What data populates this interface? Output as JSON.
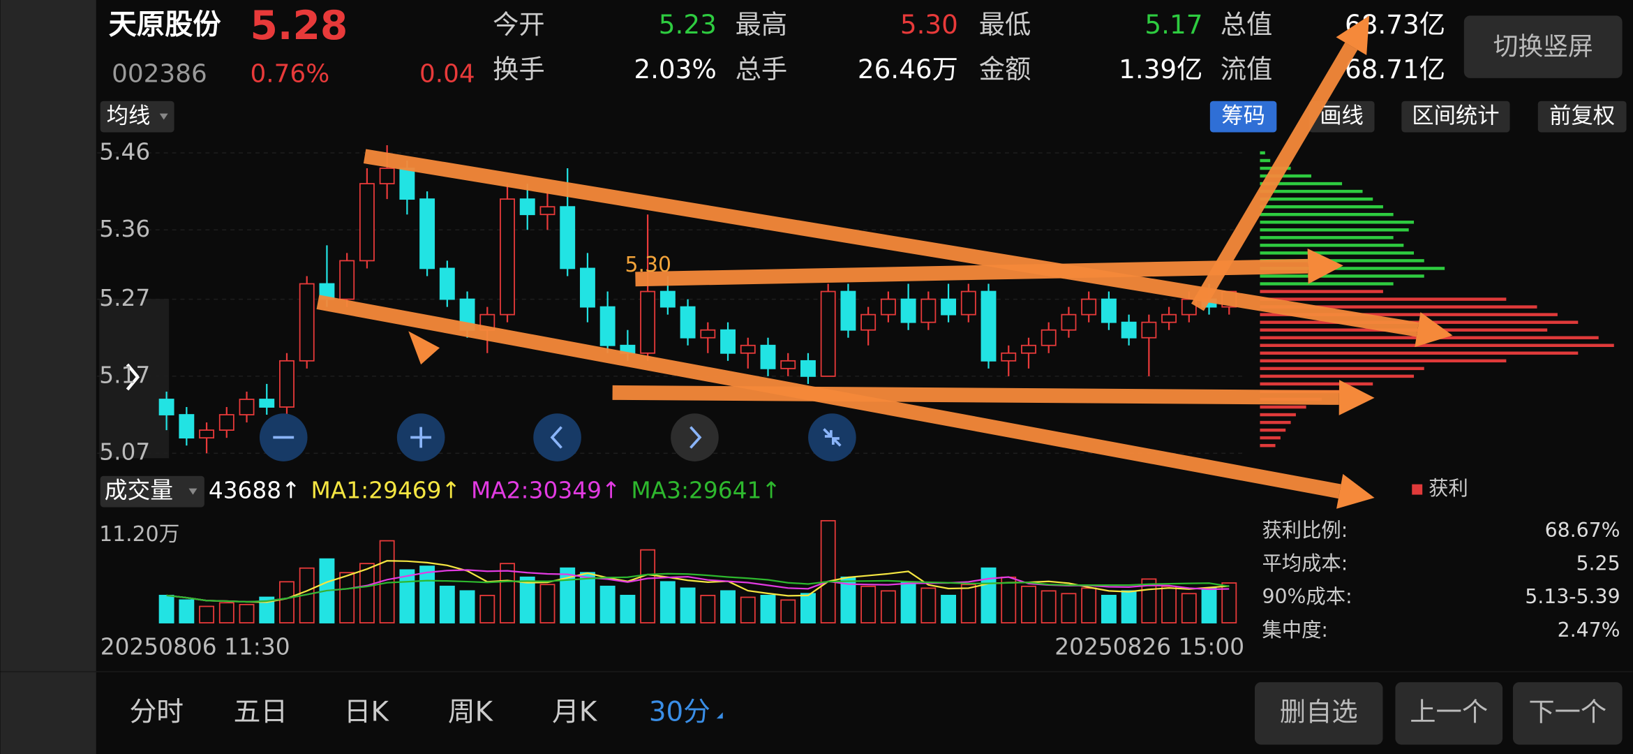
{
  "header": {
    "name": "天原股份",
    "price": "5.28",
    "code": "002386",
    "change_pct": "0.76%",
    "change": "0.04",
    "stats": [
      {
        "label": "今开",
        "value": "5.23",
        "color": "#2ecc40"
      },
      {
        "label": "最高",
        "value": "5.30",
        "color": "#e83a3a"
      },
      {
        "label": "最低",
        "value": "5.17",
        "color": "#2ecc40"
      },
      {
        "label": "总值",
        "value": "68.73亿",
        "color": "#ffffff"
      },
      {
        "label": "换手",
        "value": "2.03%",
        "color": "#ffffff"
      },
      {
        "label": "总手",
        "value": "26.46万",
        "color": "#ffffff"
      },
      {
        "label": "金额",
        "value": "1.39亿",
        "color": "#ffffff"
      },
      {
        "label": "流值",
        "value": "68.71亿",
        "color": "#ffffff"
      }
    ],
    "button": "切换竖屏"
  },
  "toolbar": {
    "ma": "均线",
    "tools": [
      "筹码",
      "画线",
      "区间统计",
      "前复权"
    ],
    "active_tool": 0
  },
  "chart_data": {
    "type": "candlestick",
    "annotation": "5.30",
    "start_label": "20250806 11:30",
    "end_label": "20250826 15:00",
    "ylim": [
      5.05,
      5.48
    ],
    "yticks": [
      5.46,
      5.36,
      5.27,
      5.17,
      5.07
    ],
    "grid": true,
    "up_color": "#e83a3a",
    "down_color": "#22e3e3",
    "open": [
      5.14,
      5.12,
      5.09,
      5.1,
      5.12,
      5.14,
      5.13,
      5.19,
      5.29,
      5.27,
      5.32,
      5.42,
      5.44,
      5.4,
      5.31,
      5.27,
      5.23,
      5.25,
      5.4,
      5.38,
      5.39,
      5.31,
      5.26,
      5.21,
      5.2,
      5.28,
      5.26,
      5.22,
      5.23,
      5.2,
      5.21,
      5.18,
      5.19,
      5.17,
      5.28,
      5.23,
      5.25,
      5.27,
      5.24,
      5.27,
      5.25,
      5.28,
      5.19,
      5.2,
      5.21,
      5.23,
      5.25,
      5.27,
      5.24,
      5.22,
      5.24,
      5.25,
      5.27,
      5.26
    ],
    "high": [
      5.15,
      5.13,
      5.11,
      5.13,
      5.15,
      5.16,
      5.2,
      5.3,
      5.34,
      5.33,
      5.44,
      5.47,
      5.45,
      5.41,
      5.32,
      5.28,
      5.26,
      5.42,
      5.42,
      5.41,
      5.44,
      5.33,
      5.28,
      5.23,
      5.38,
      5.3,
      5.27,
      5.24,
      5.24,
      5.22,
      5.22,
      5.2,
      5.2,
      5.29,
      5.29,
      5.26,
      5.28,
      5.29,
      5.28,
      5.29,
      5.29,
      5.29,
      5.21,
      5.22,
      5.24,
      5.26,
      5.28,
      5.28,
      5.25,
      5.25,
      5.26,
      5.28,
      5.29,
      5.28
    ],
    "low": [
      5.1,
      5.08,
      5.07,
      5.09,
      5.11,
      5.12,
      5.12,
      5.18,
      5.26,
      5.26,
      5.31,
      5.4,
      5.38,
      5.3,
      5.26,
      5.22,
      5.2,
      5.24,
      5.36,
      5.36,
      5.3,
      5.24,
      5.2,
      5.19,
      5.19,
      5.25,
      5.21,
      5.2,
      5.19,
      5.18,
      5.17,
      5.17,
      5.16,
      5.17,
      5.22,
      5.21,
      5.24,
      5.23,
      5.23,
      5.24,
      5.24,
      5.18,
      5.17,
      5.18,
      5.2,
      5.22,
      5.24,
      5.23,
      5.21,
      5.17,
      5.23,
      5.24,
      5.25,
      5.25
    ],
    "close": [
      5.12,
      5.09,
      5.1,
      5.12,
      5.14,
      5.13,
      5.19,
      5.29,
      5.27,
      5.32,
      5.42,
      5.44,
      5.4,
      5.31,
      5.27,
      5.23,
      5.25,
      5.4,
      5.38,
      5.39,
      5.31,
      5.26,
      5.21,
      5.2,
      5.28,
      5.26,
      5.22,
      5.23,
      5.2,
      5.21,
      5.18,
      5.19,
      5.17,
      5.28,
      5.23,
      5.25,
      5.27,
      5.24,
      5.27,
      5.25,
      5.28,
      5.19,
      5.2,
      5.21,
      5.23,
      5.25,
      5.27,
      5.24,
      5.22,
      5.24,
      5.25,
      5.27,
      5.26,
      5.28
    ],
    "volume": {
      "label": "成交量",
      "max_label": "11.20万",
      "ylim": [
        0,
        112000
      ],
      "values": [
        30000,
        25000,
        18000,
        22000,
        20000,
        28000,
        45000,
        60000,
        70000,
        55000,
        65000,
        90000,
        58000,
        62000,
        40000,
        35000,
        30000,
        65000,
        50000,
        42000,
        60000,
        55000,
        40000,
        30000,
        80000,
        45000,
        38000,
        30000,
        35000,
        28000,
        30000,
        25000,
        32000,
        112000,
        50000,
        40000,
        35000,
        45000,
        38000,
        30000,
        42000,
        60000,
        50000,
        40000,
        35000,
        32000,
        38000,
        30000,
        35000,
        48000,
        40000,
        32000,
        38000,
        43688
      ],
      "legend": [
        {
          "text": "43688↑",
          "color": "#ffffff"
        },
        {
          "text": "MA1:29469↑",
          "color": "#f5e642"
        },
        {
          "text": "MA2:30349↑",
          "color": "#e23be2"
        },
        {
          "text": "MA3:29641↑",
          "color": "#2eb82e"
        }
      ]
    },
    "chips": {
      "xlim": [
        0,
        350
      ],
      "current": 5.28,
      "above_color": "#2ecc40",
      "below_color": "#e03a3a",
      "legend": "获利",
      "prices": [
        5.46,
        5.45,
        5.44,
        5.43,
        5.42,
        5.41,
        5.4,
        5.39,
        5.38,
        5.37,
        5.36,
        5.35,
        5.34,
        5.33,
        5.32,
        5.31,
        5.3,
        5.29,
        5.28,
        5.27,
        5.26,
        5.25,
        5.24,
        5.23,
        5.22,
        5.21,
        5.2,
        5.19,
        5.18,
        5.17,
        5.16,
        5.15,
        5.14,
        5.13,
        5.12,
        5.11,
        5.1,
        5.09,
        5.08
      ],
      "values": [
        5,
        10,
        30,
        50,
        80,
        100,
        110,
        120,
        130,
        150,
        145,
        130,
        140,
        150,
        160,
        180,
        160,
        130,
        120,
        240,
        270,
        290,
        310,
        280,
        330,
        345,
        310,
        240,
        160,
        150,
        110,
        80,
        60,
        45,
        35,
        30,
        25,
        20,
        15
      ],
      "stats": [
        {
          "label": "获利比例:",
          "value": "68.67%"
        },
        {
          "label": "平均成本:",
          "value": "5.25"
        },
        {
          "label": "90%成本:",
          "value": "5.13-5.39"
        },
        {
          "label": "集中度:",
          "value": "2.47%"
        }
      ]
    }
  },
  "tabs": {
    "items": [
      "分时",
      "五日",
      "日K",
      "周K",
      "月K",
      "30分"
    ],
    "active": 5
  },
  "buttons": [
    "删自选",
    "上一个",
    "下一个"
  ]
}
